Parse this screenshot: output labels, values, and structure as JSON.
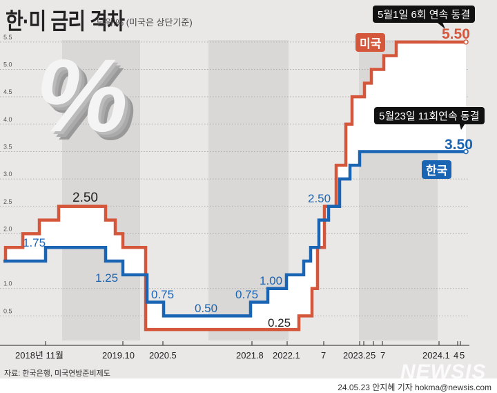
{
  "title": "한·미 금리 격차",
  "unit": "단위:% (미국은 상단기준)",
  "decor_symbol": "%",
  "chart_data": {
    "type": "line",
    "subtype": "step",
    "ylim": [
      0,
      5.5
    ],
    "yticks": [
      "5.5",
      "5.0",
      "4.5",
      "4.0",
      "3.5",
      "3.0",
      "2.5",
      "2.0",
      "1.0",
      "0.5"
    ],
    "xtick_labels": [
      "2018년 11월",
      "2019.10",
      "2020.5",
      "2021.8",
      "2022.1",
      "7",
      "2023.2",
      "5",
      "7",
      "2024.1",
      "4",
      "5"
    ],
    "grid": true,
    "series": [
      {
        "name": "미국",
        "color": "#d4573b",
        "values": [
          1.5,
          1.75,
          2.0,
          2.25,
          2.5,
          2.25,
          2.0,
          1.75,
          0.25,
          0.5,
          1.0,
          1.75,
          2.5,
          3.25,
          4.0,
          4.5,
          4.75,
          5.0,
          5.25,
          5.5
        ]
      },
      {
        "name": "한국",
        "color": "#1a64b4",
        "values": [
          1.5,
          1.75,
          1.5,
          1.25,
          0.75,
          0.5,
          0.75,
          1.0,
          1.25,
          1.5,
          1.75,
          2.25,
          2.5,
          3.0,
          3.25,
          3.5
        ]
      }
    ],
    "annotations": {
      "us_peak": "2.50",
      "kr_peak": "1.75",
      "kr_125": "1.25",
      "kr_075a": "0.75",
      "kr_050": "0.50",
      "kr_075b": "0.75",
      "kr_100": "1.00",
      "us_025": "0.25",
      "kr_250": "2.50",
      "us_final": "5.50",
      "kr_final": "3.50",
      "us_callout": "5월1일 6회 연속 동결",
      "kr_callout": "5월23일 11회연속 동결"
    }
  },
  "source": "자료: 한국은행, 미국연방준비제도",
  "credit": "24.05.23 안지혜 기자 hokma@newsis.com",
  "logo": "NEWSIS"
}
